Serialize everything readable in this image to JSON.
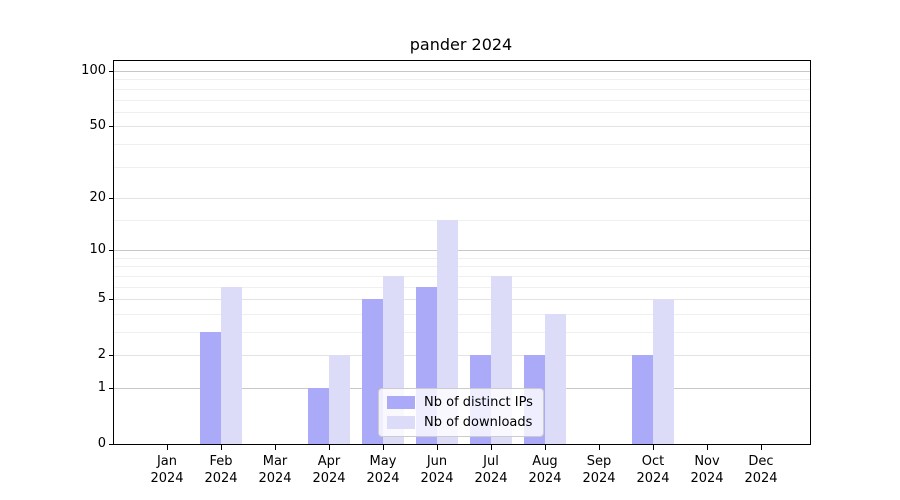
{
  "title": "pander 2024",
  "chart_data": {
    "type": "bar",
    "title": "pander 2024",
    "xlabel": "",
    "ylabel": "",
    "yscale": "log1p",
    "ylim": [
      0,
      115
    ],
    "grid": true,
    "legend_position": "lower center",
    "yticks": [
      0,
      1,
      2,
      5,
      10,
      20,
      50,
      100
    ],
    "major_gridlines": [
      1,
      10,
      100
    ],
    "labeled_mid_gridlines": [
      2,
      5,
      20,
      50
    ],
    "minor_gridlines": [
      3,
      4,
      6,
      7,
      8,
      9,
      15,
      30,
      40,
      60,
      70,
      80,
      90
    ],
    "categories": [
      "Jan 2024",
      "Feb 2024",
      "Mar 2024",
      "Apr 2024",
      "May 2024",
      "Jun 2024",
      "Jul 2024",
      "Aug 2024",
      "Sep 2024",
      "Oct 2024",
      "Nov 2024",
      "Dec 2024"
    ],
    "series": [
      {
        "name": "Nb of distinct IPs",
        "color": "#aaaaf8",
        "values": [
          0,
          3,
          0,
          1,
          5,
          6,
          2,
          2,
          0,
          2,
          0,
          0
        ]
      },
      {
        "name": "Nb of downloads",
        "color": "#dcdcf9",
        "values": [
          0,
          6,
          0,
          2,
          7,
          15,
          7,
          4,
          0,
          5,
          0,
          0
        ]
      }
    ]
  },
  "colors": {
    "axis": "#000000",
    "major_grid": "#c8c8c8",
    "minor_grid": "#efefef",
    "legend_border": "#cccccc"
  }
}
